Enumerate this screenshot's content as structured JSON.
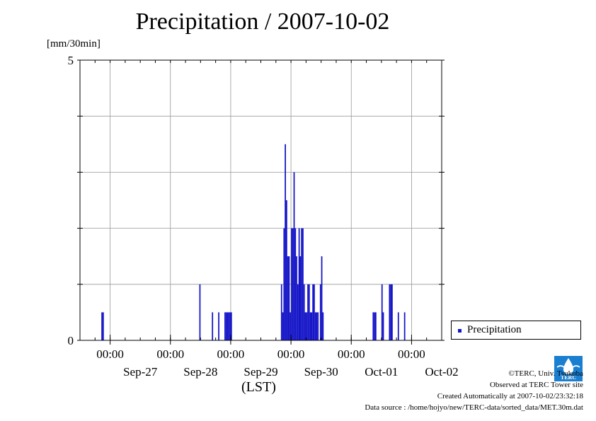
{
  "title": "Precipitation / 2007-10-02",
  "unit_label": "[mm/30min]",
  "xlabel": "(LST)",
  "legend": {
    "label": "Precipitation"
  },
  "credits": [
    "©TERC, Univ. Tsukuba",
    "Observed at TERC Tower site",
    "Created Automatically at 2007-10-02/23:32:18",
    "Data source : /home/hojyo/new/TERC-data/sorted_data/MET.30m.dat"
  ],
  "logo": {
    "text": "TERC",
    "icon": "terc-logo-icon"
  },
  "colors": {
    "bar": "#1515c8",
    "grid": "#999999",
    "axis": "#000000"
  },
  "chart_data": {
    "type": "bar",
    "title": "Precipitation / 2007-10-02",
    "ylabel": "[mm/30min]",
    "xlabel": "(LST)",
    "ylim": [
      0,
      5
    ],
    "yticks": [
      0,
      5
    ],
    "xlim": [
      "2007-09-26 12:00",
      "2007-10-02 12:00"
    ],
    "x_time_ticks": [
      "2007-09-27 00:00",
      "2007-09-28 00:00",
      "2007-09-29 00:00",
      "2007-09-30 00:00",
      "2007-10-01 00:00",
      "2007-10-02 00:00"
    ],
    "x_tick_labels_time": [
      "00:00",
      "00:00",
      "00:00",
      "00:00",
      "00:00",
      "00:00"
    ],
    "x_tick_labels_date": [
      "Sep-27",
      "Sep-28",
      "Sep-29",
      "Sep-30",
      "Oct-01",
      "Oct-02"
    ],
    "grid": true,
    "legend_position": "right",
    "series": [
      {
        "name": "Precipitation",
        "x": [
          "2007-09-26 20:30",
          "2007-09-26 21:00",
          "2007-09-28 11:30",
          "2007-09-28 16:30",
          "2007-09-28 19:00",
          "2007-09-28 21:30",
          "2007-09-28 22:00",
          "2007-09-28 22:30",
          "2007-09-28 23:00",
          "2007-09-28 23:30",
          "2007-09-29 00:00",
          "2007-09-29 20:00",
          "2007-09-29 20:30",
          "2007-09-29 21:00",
          "2007-09-29 21:30",
          "2007-09-29 22:00",
          "2007-09-29 22:30",
          "2007-09-29 23:00",
          "2007-09-29 23:30",
          "2007-09-30 00:00",
          "2007-09-30 00:30",
          "2007-09-30 01:00",
          "2007-09-30 01:30",
          "2007-09-30 02:00",
          "2007-09-30 02:30",
          "2007-09-30 03:00",
          "2007-09-30 03:30",
          "2007-09-30 04:00",
          "2007-09-30 04:30",
          "2007-09-30 05:00",
          "2007-09-30 05:30",
          "2007-09-30 06:00",
          "2007-09-30 06:30",
          "2007-09-30 07:00",
          "2007-09-30 07:30",
          "2007-09-30 08:00",
          "2007-09-30 08:30",
          "2007-09-30 09:00",
          "2007-09-30 09:30",
          "2007-09-30 10:00",
          "2007-09-30 10:30",
          "2007-09-30 11:30",
          "2007-09-30 12:00",
          "2007-09-30 12:30",
          "2007-10-01 08:30",
          "2007-10-01 09:00",
          "2007-10-01 09:30",
          "2007-10-01 12:00",
          "2007-10-01 12:30",
          "2007-10-01 15:00",
          "2007-10-01 15:30",
          "2007-10-01 16:00",
          "2007-10-01 18:30",
          "2007-10-01 21:00"
        ],
        "values": [
          0.5,
          0.5,
          1.0,
          0.5,
          0.5,
          0.5,
          0.5,
          0.5,
          0.5,
          0.5,
          0.5,
          1.0,
          0.5,
          2.0,
          3.5,
          2.5,
          1.5,
          1.5,
          0.5,
          2.0,
          2.0,
          3.0,
          2.0,
          1.5,
          1.0,
          2.0,
          1.5,
          2.0,
          2.0,
          1.0,
          0.5,
          0.5,
          1.0,
          1.0,
          0.5,
          0.5,
          1.0,
          1.0,
          0.5,
          0.5,
          0.5,
          1.0,
          1.5,
          0.5,
          0.5,
          0.5,
          0.5,
          1.0,
          0.5,
          1.0,
          1.0,
          1.0,
          0.5,
          0.5
        ]
      }
    ]
  }
}
